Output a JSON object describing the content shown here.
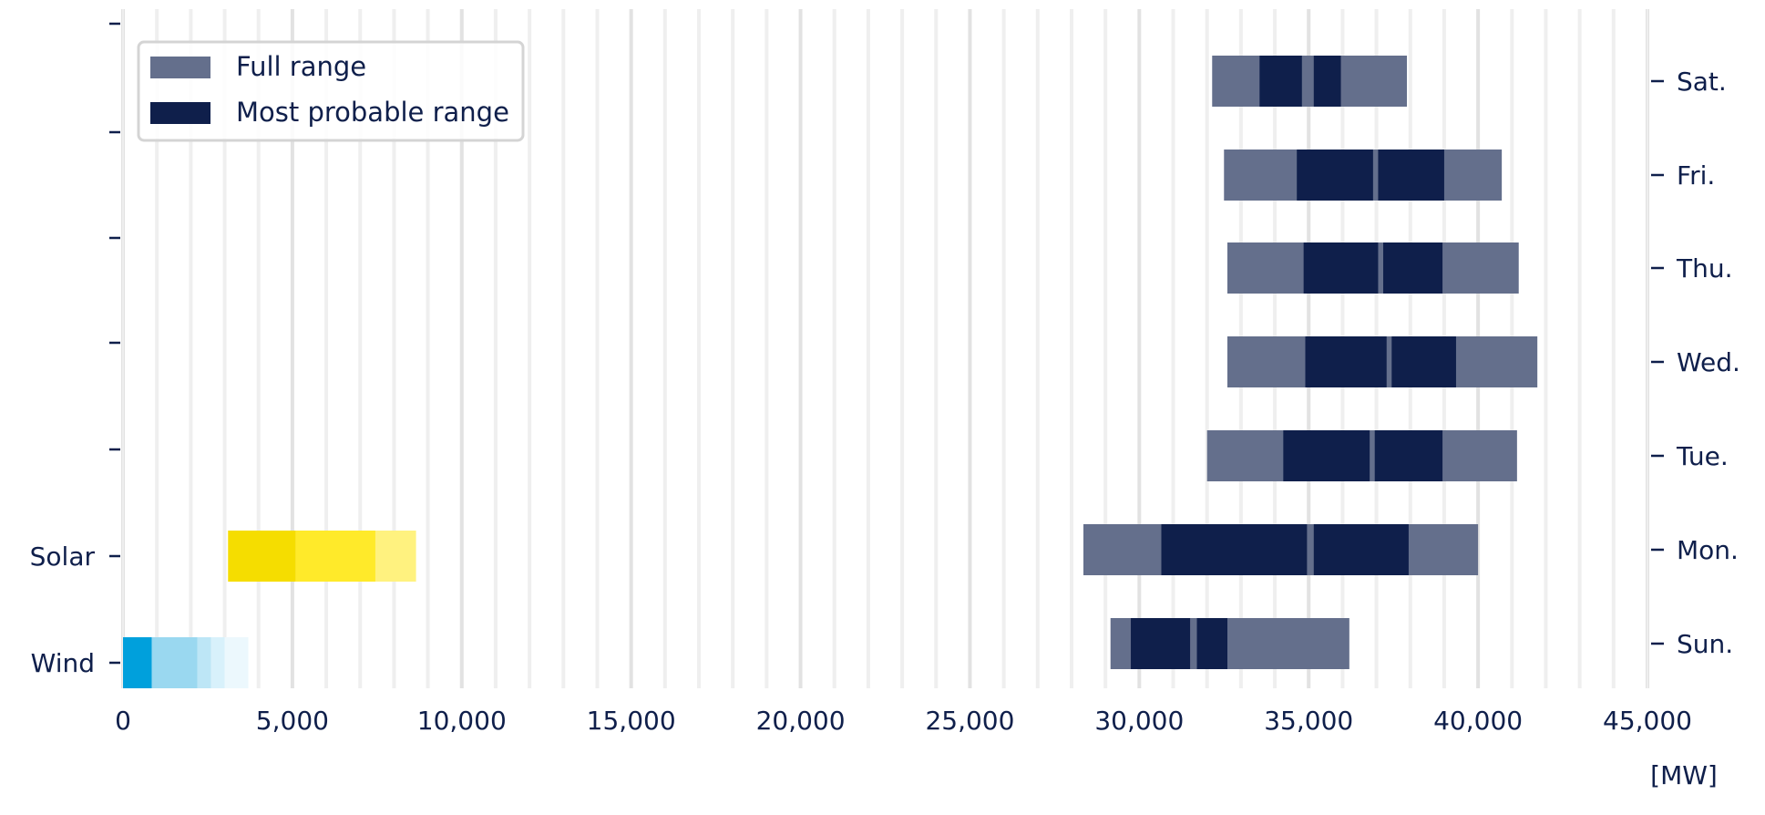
{
  "chart_data": {
    "type": "bar",
    "orientation": "horizontal",
    "xlim": [
      0,
      45000
    ],
    "x_ticks": [
      0,
      5000,
      10000,
      15000,
      20000,
      25000,
      30000,
      35000,
      40000,
      45000
    ],
    "x_tick_labels": [
      "0",
      "5,000",
      "10,000",
      "15,000",
      "20,000",
      "25,000",
      "30,000",
      "35,000",
      "40,000",
      "45,000"
    ],
    "unit_label": "[MW]",
    "grid": "vertical",
    "legend": {
      "placement": "top-left",
      "items": [
        {
          "label": "Full range",
          "color": "#646f8c"
        },
        {
          "label": "Most probable range",
          "color": "#0f1f4b"
        }
      ]
    },
    "left_axis_labels": [
      "Solar",
      "Wind"
    ],
    "right_axis_labels": [
      "Sat.",
      "Fri.",
      "Thu.",
      "Wed.",
      "Tue.",
      "Mon.",
      "Sun."
    ],
    "colors": {
      "full_range": "#646f8c",
      "most_probable": "#0f1f4b",
      "solar": [
        "#f5dd00",
        "#ffea2a",
        "#fff27f"
      ],
      "wind": [
        "#00a0dc",
        "#9ad8f0",
        "#bde6f6",
        "#d8f1fb",
        "#ecf8fd"
      ]
    },
    "series": [
      {
        "name": "Full range",
        "day": "Sat.",
        "ranges": [
          [
            32150,
            37900
          ]
        ]
      },
      {
        "name": "Most probable range",
        "day": "Sat.",
        "ranges": [
          [
            33550,
            34800
          ],
          [
            35150,
            35950
          ]
        ]
      },
      {
        "name": "Full range",
        "day": "Fri.",
        "ranges": [
          [
            32500,
            40700
          ]
        ]
      },
      {
        "name": "Most probable range",
        "day": "Fri.",
        "ranges": [
          [
            34650,
            36900
          ],
          [
            37050,
            39000
          ]
        ]
      },
      {
        "name": "Full range",
        "day": "Thu.",
        "ranges": [
          [
            32600,
            41200
          ]
        ]
      },
      {
        "name": "Most probable range",
        "day": "Thu.",
        "ranges": [
          [
            34850,
            37050
          ],
          [
            37200,
            38950
          ]
        ]
      },
      {
        "name": "Full range",
        "day": "Wed.",
        "ranges": [
          [
            32600,
            41750
          ]
        ]
      },
      {
        "name": "Most probable range",
        "day": "Wed.",
        "ranges": [
          [
            34900,
            37300
          ],
          [
            37450,
            39350
          ]
        ]
      },
      {
        "name": "Full range",
        "day": "Tue.",
        "ranges": [
          [
            32000,
            41150
          ]
        ]
      },
      {
        "name": "Most probable range",
        "day": "Tue.",
        "ranges": [
          [
            34250,
            36800
          ],
          [
            36950,
            38950
          ]
        ]
      },
      {
        "name": "Full range",
        "day": "Mon.",
        "ranges": [
          [
            28350,
            40000
          ]
        ]
      },
      {
        "name": "Most probable range",
        "day": "Mon.",
        "ranges": [
          [
            30650,
            34950
          ],
          [
            35150,
            37950
          ]
        ]
      },
      {
        "name": "Full range",
        "day": "Sun.",
        "ranges": [
          [
            29150,
            36200
          ]
        ]
      },
      {
        "name": "Most probable range",
        "day": "Sun.",
        "ranges": [
          [
            29750,
            31500
          ],
          [
            31700,
            32600
          ]
        ]
      },
      {
        "name": "Solar",
        "segments": [
          [
            3100,
            5100
          ],
          [
            5100,
            7450
          ],
          [
            7450,
            8650
          ]
        ]
      },
      {
        "name": "Wind",
        "segments": [
          [
            0,
            850
          ],
          [
            850,
            2200
          ],
          [
            2200,
            2600
          ],
          [
            2600,
            3000
          ],
          [
            3000,
            3700
          ]
        ]
      }
    ]
  }
}
